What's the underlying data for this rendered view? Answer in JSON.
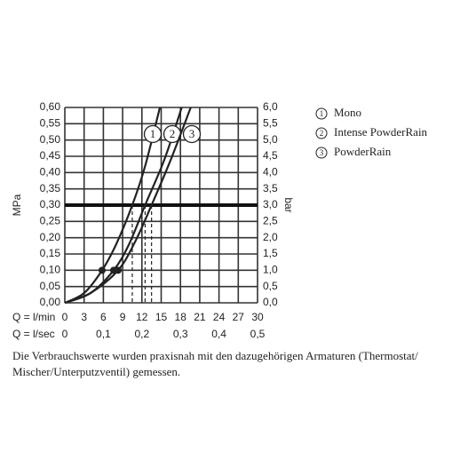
{
  "chart_data": {
    "type": "line",
    "xlabel": "Q = l/min",
    "x2label": "Q = l/sec",
    "ylabel": "MPa",
    "y2label": "bar",
    "xlim": [
      0,
      30
    ],
    "xticks": [
      0,
      3,
      6,
      9,
      12,
      15,
      18,
      21,
      24,
      27,
      30
    ],
    "x2lim": [
      0,
      0.5
    ],
    "x2ticks": [
      0,
      {
        "value": 0.1,
        "label": "0,1"
      },
      {
        "value": 0.2,
        "label": "0,2"
      },
      {
        "value": 0.3,
        "label": "0,3"
      },
      {
        "value": 0.4,
        "label": "0,4"
      },
      {
        "value": 0.5,
        "label": "0,5"
      }
    ],
    "ylim": [
      0,
      0.6
    ],
    "yticks": [
      {
        "value": 0,
        "label": "0,00"
      },
      {
        "value": 0.05,
        "label": "0,05"
      },
      {
        "value": 0.1,
        "label": "0,10"
      },
      {
        "value": 0.15,
        "label": "0,15"
      },
      {
        "value": 0.2,
        "label": "0,20"
      },
      {
        "value": 0.25,
        "label": "0,25"
      },
      {
        "value": 0.3,
        "label": "0,30"
      },
      {
        "value": 0.35,
        "label": "0,35"
      },
      {
        "value": 0.4,
        "label": "0,40"
      },
      {
        "value": 0.45,
        "label": "0,45"
      },
      {
        "value": 0.5,
        "label": "0,50"
      },
      {
        "value": 0.55,
        "label": "0,55"
      },
      {
        "value": 0.6,
        "label": "0,60"
      }
    ],
    "y2lim": [
      0,
      6
    ],
    "y2ticks": [
      {
        "value": 0,
        "label": "0,0"
      },
      {
        "value": 0.5,
        "label": "0,5"
      },
      {
        "value": 1,
        "label": "1,0"
      },
      {
        "value": 1.5,
        "label": "1,5"
      },
      {
        "value": 2,
        "label": "2,0"
      },
      {
        "value": 2.5,
        "label": "2,5"
      },
      {
        "value": 3,
        "label": "3,0"
      },
      {
        "value": 3.5,
        "label": "3,5"
      },
      {
        "value": 4,
        "label": "4,0"
      },
      {
        "value": 4.5,
        "label": "4,5"
      },
      {
        "value": 5,
        "label": "5,0"
      },
      {
        "value": 5.5,
        "label": "5,5"
      },
      {
        "value": 6,
        "label": "6,0"
      }
    ],
    "grid": true,
    "reference_line": 0.3,
    "marker_point": 2,
    "series": [
      {
        "name": "Mono",
        "label": "1",
        "color": "#222222",
        "x": [
          0,
          3,
          5.8,
          8,
          10.5,
          12.5,
          14.8
        ],
        "values": [
          0,
          0.03,
          0.1,
          0.18,
          0.3,
          0.42,
          0.6
        ]
      },
      {
        "name": "Intense PowderRain",
        "label": "2",
        "color": "#222222",
        "x": [
          0,
          4,
          7.6,
          10,
          12.5,
          15.5,
          18.2
        ],
        "values": [
          0,
          0.03,
          0.1,
          0.18,
          0.3,
          0.44,
          0.6
        ]
      },
      {
        "name": "PowderRain",
        "label": "3",
        "color": "#222222",
        "x": [
          0,
          4,
          8.3,
          11,
          13.5,
          16.5,
          19.6
        ],
        "values": [
          0,
          0.03,
          0.1,
          0.19,
          0.3,
          0.44,
          0.6
        ]
      }
    ],
    "note": "Die Verbrauchswerte wurden praxisnah mit den dazugehörigen Armaturen (Thermostat/ Mischer/Unterputzventil) gemessen."
  }
}
